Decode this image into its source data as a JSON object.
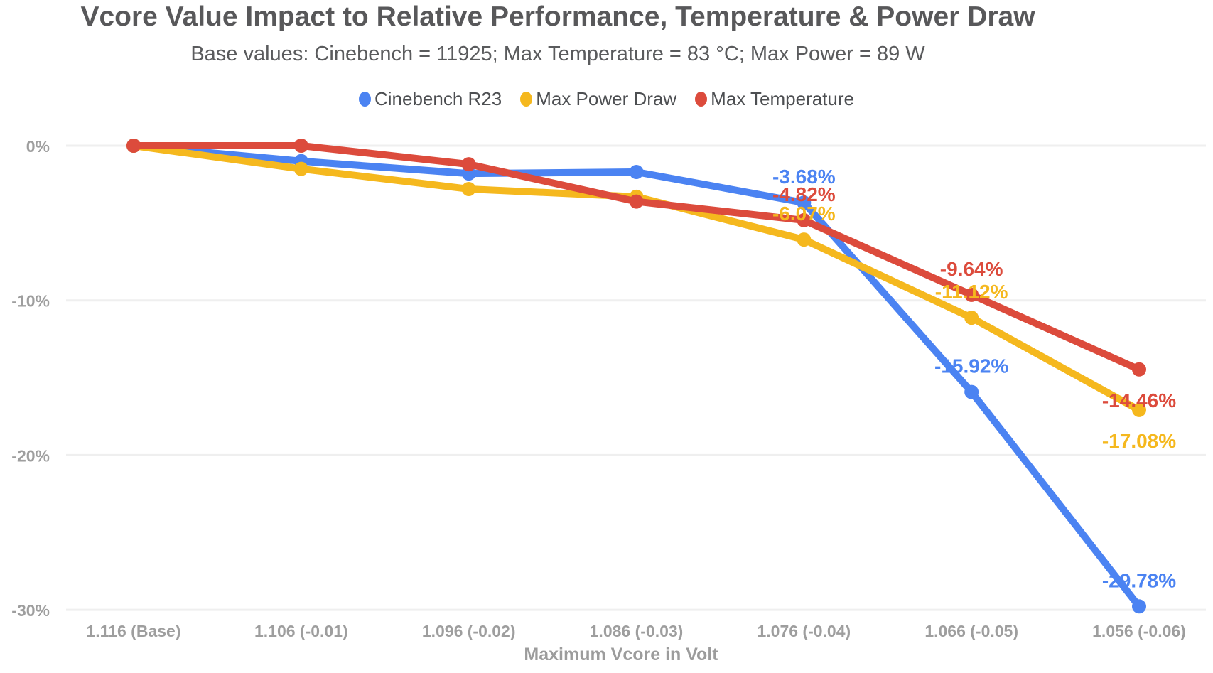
{
  "title": "Vcore Value Impact to Relative Performance, Temperature & Power Draw",
  "subtitle": "Base values: Cinebench = 11925; Max Temperature = 83 °C; Max Power = 89 W",
  "colors": {
    "background": "#ffffff",
    "gridline": "#efefef",
    "title_text": "#58585a",
    "subtitle_text": "#5a5b5d",
    "tick_text": "#9e9e9e",
    "axis_title_text": "#9c9c9c",
    "legend_text": "#4d4f52",
    "series_blue": "#4b83f2",
    "series_yellow": "#f5b81e",
    "series_red": "#dc4b3c"
  },
  "chart_data": {
    "type": "line",
    "title": "Vcore Value Impact to Relative Performance, Temperature & Power Draw",
    "subtitle": "Base values: Cinebench = 11925; Max Temperature = 83 °C; Max Power = 89 W",
    "xlabel": "Maximum Vcore in Volt",
    "ylabel": "",
    "y_unit": "%",
    "ylim": [
      -30,
      0
    ],
    "grid": true,
    "legend_position": "top",
    "categories": [
      "1.116 (Base)",
      "1.106 (-0.01)",
      "1.096 (-0.02)",
      "1.086 (-0.03)",
      "1.076 (-0.04)",
      "1.066 (-0.05)",
      "1.056 (-0.06)"
    ],
    "y_ticks": [
      {
        "value": 0,
        "label": "0%"
      },
      {
        "value": -10,
        "label": "-10%"
      },
      {
        "value": -20,
        "label": "-20%"
      },
      {
        "value": -30,
        "label": "-30%"
      }
    ],
    "series": [
      {
        "name": "Cinebench R23",
        "color": "#4b83f2",
        "values": [
          0,
          -1.0,
          -1.8,
          -1.7,
          -3.68,
          -15.92,
          -29.78
        ],
        "point_labels": [
          {
            "index": 4,
            "text": "-3.68%",
            "position": "above"
          },
          {
            "index": 5,
            "text": "-15.92%",
            "position": "above"
          },
          {
            "index": 6,
            "text": "-29.78%",
            "position": "above"
          }
        ]
      },
      {
        "name": "Max Power Draw",
        "color": "#f5b81e",
        "values": [
          0,
          -1.5,
          -2.8,
          -3.3,
          -6.07,
          -11.12,
          -17.08
        ],
        "point_labels": [
          {
            "index": 4,
            "text": "-6.07%",
            "position": "above"
          },
          {
            "index": 5,
            "text": "-11.12%",
            "position": "above"
          },
          {
            "index": 6,
            "text": "-17.08%",
            "position": "below"
          }
        ]
      },
      {
        "name": "Max Temperature",
        "color": "#dc4b3c",
        "values": [
          0,
          0,
          -1.2,
          -3.61,
          -4.82,
          -9.64,
          -14.46
        ],
        "point_labels": [
          {
            "index": 4,
            "text": "-4.82%",
            "position": "above"
          },
          {
            "index": 5,
            "text": "-9.64%",
            "position": "above"
          },
          {
            "index": 6,
            "text": "-14.46%",
            "position": "below"
          }
        ]
      }
    ]
  }
}
